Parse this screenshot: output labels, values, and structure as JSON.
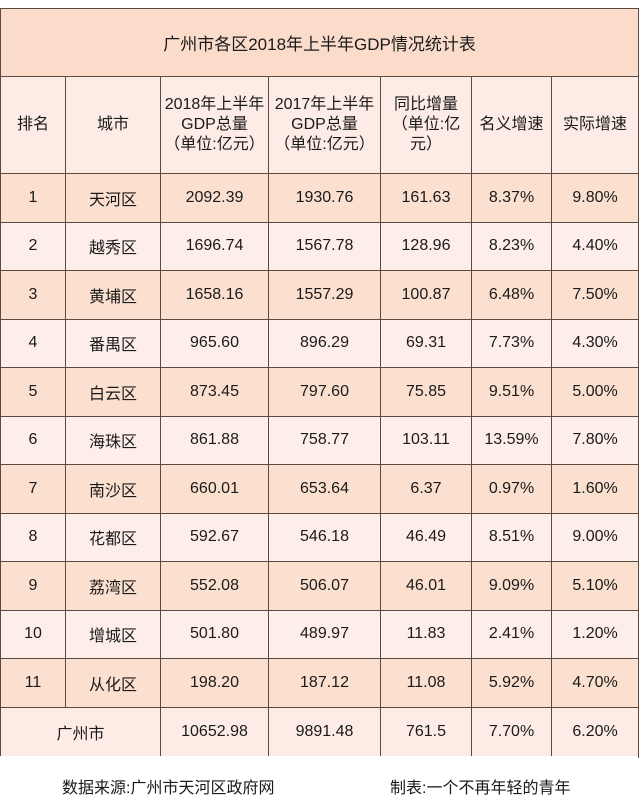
{
  "table": {
    "title": "广州市各区2018年上半年GDP情况统计表",
    "headers": [
      {
        "lines": [
          "排名"
        ]
      },
      {
        "lines": [
          "城市"
        ]
      },
      {
        "lines": [
          "2018年上半年",
          "GDP总量",
          "（单位:亿元）"
        ]
      },
      {
        "lines": [
          "2017年上半年",
          "GDP总量",
          "（单位:亿元）"
        ]
      },
      {
        "lines": [
          "同比增量",
          "（单位:亿元）"
        ]
      },
      {
        "lines": [
          "名义增速"
        ]
      },
      {
        "lines": [
          "实际增速"
        ]
      }
    ],
    "rows": [
      [
        "1",
        "天河区",
        "2092.39",
        "1930.76",
        "161.63",
        "8.37%",
        "9.80%"
      ],
      [
        "2",
        "越秀区",
        "1696.74",
        "1567.78",
        "128.96",
        "8.23%",
        "4.40%"
      ],
      [
        "3",
        "黄埔区",
        "1658.16",
        "1557.29",
        "100.87",
        "6.48%",
        "7.50%"
      ],
      [
        "4",
        "番禺区",
        "965.60",
        "896.29",
        "69.31",
        "7.73%",
        "4.30%"
      ],
      [
        "5",
        "白云区",
        "873.45",
        "797.60",
        "75.85",
        "9.51%",
        "5.00%"
      ],
      [
        "6",
        "海珠区",
        "861.88",
        "758.77",
        "103.11",
        "13.59%",
        "7.80%"
      ],
      [
        "7",
        "南沙区",
        "660.01",
        "653.64",
        "6.37",
        "0.97%",
        "1.60%"
      ],
      [
        "8",
        "花都区",
        "592.67",
        "546.18",
        "46.49",
        "8.51%",
        "9.00%"
      ],
      [
        "9",
        "荔湾区",
        "552.08",
        "506.07",
        "46.01",
        "9.09%",
        "5.10%"
      ],
      [
        "10",
        "增城区",
        "501.80",
        "489.97",
        "11.83",
        "2.41%",
        "1.20%"
      ],
      [
        "11",
        "从化区",
        "198.20",
        "187.12",
        "11.08",
        "5.92%",
        "4.70%"
      ]
    ],
    "total": [
      "广州市",
      "10652.98",
      "9891.48",
      "761.5",
      "7.70%",
      "6.20%"
    ]
  },
  "footer": {
    "source": "数据来源:广州市天河区政府网",
    "maker": "制表:一个不再年轻的青年"
  },
  "colors": {
    "row_peach": "#fbdfcf",
    "row_pink": "#fdeeea",
    "border": "#5a4a42"
  }
}
